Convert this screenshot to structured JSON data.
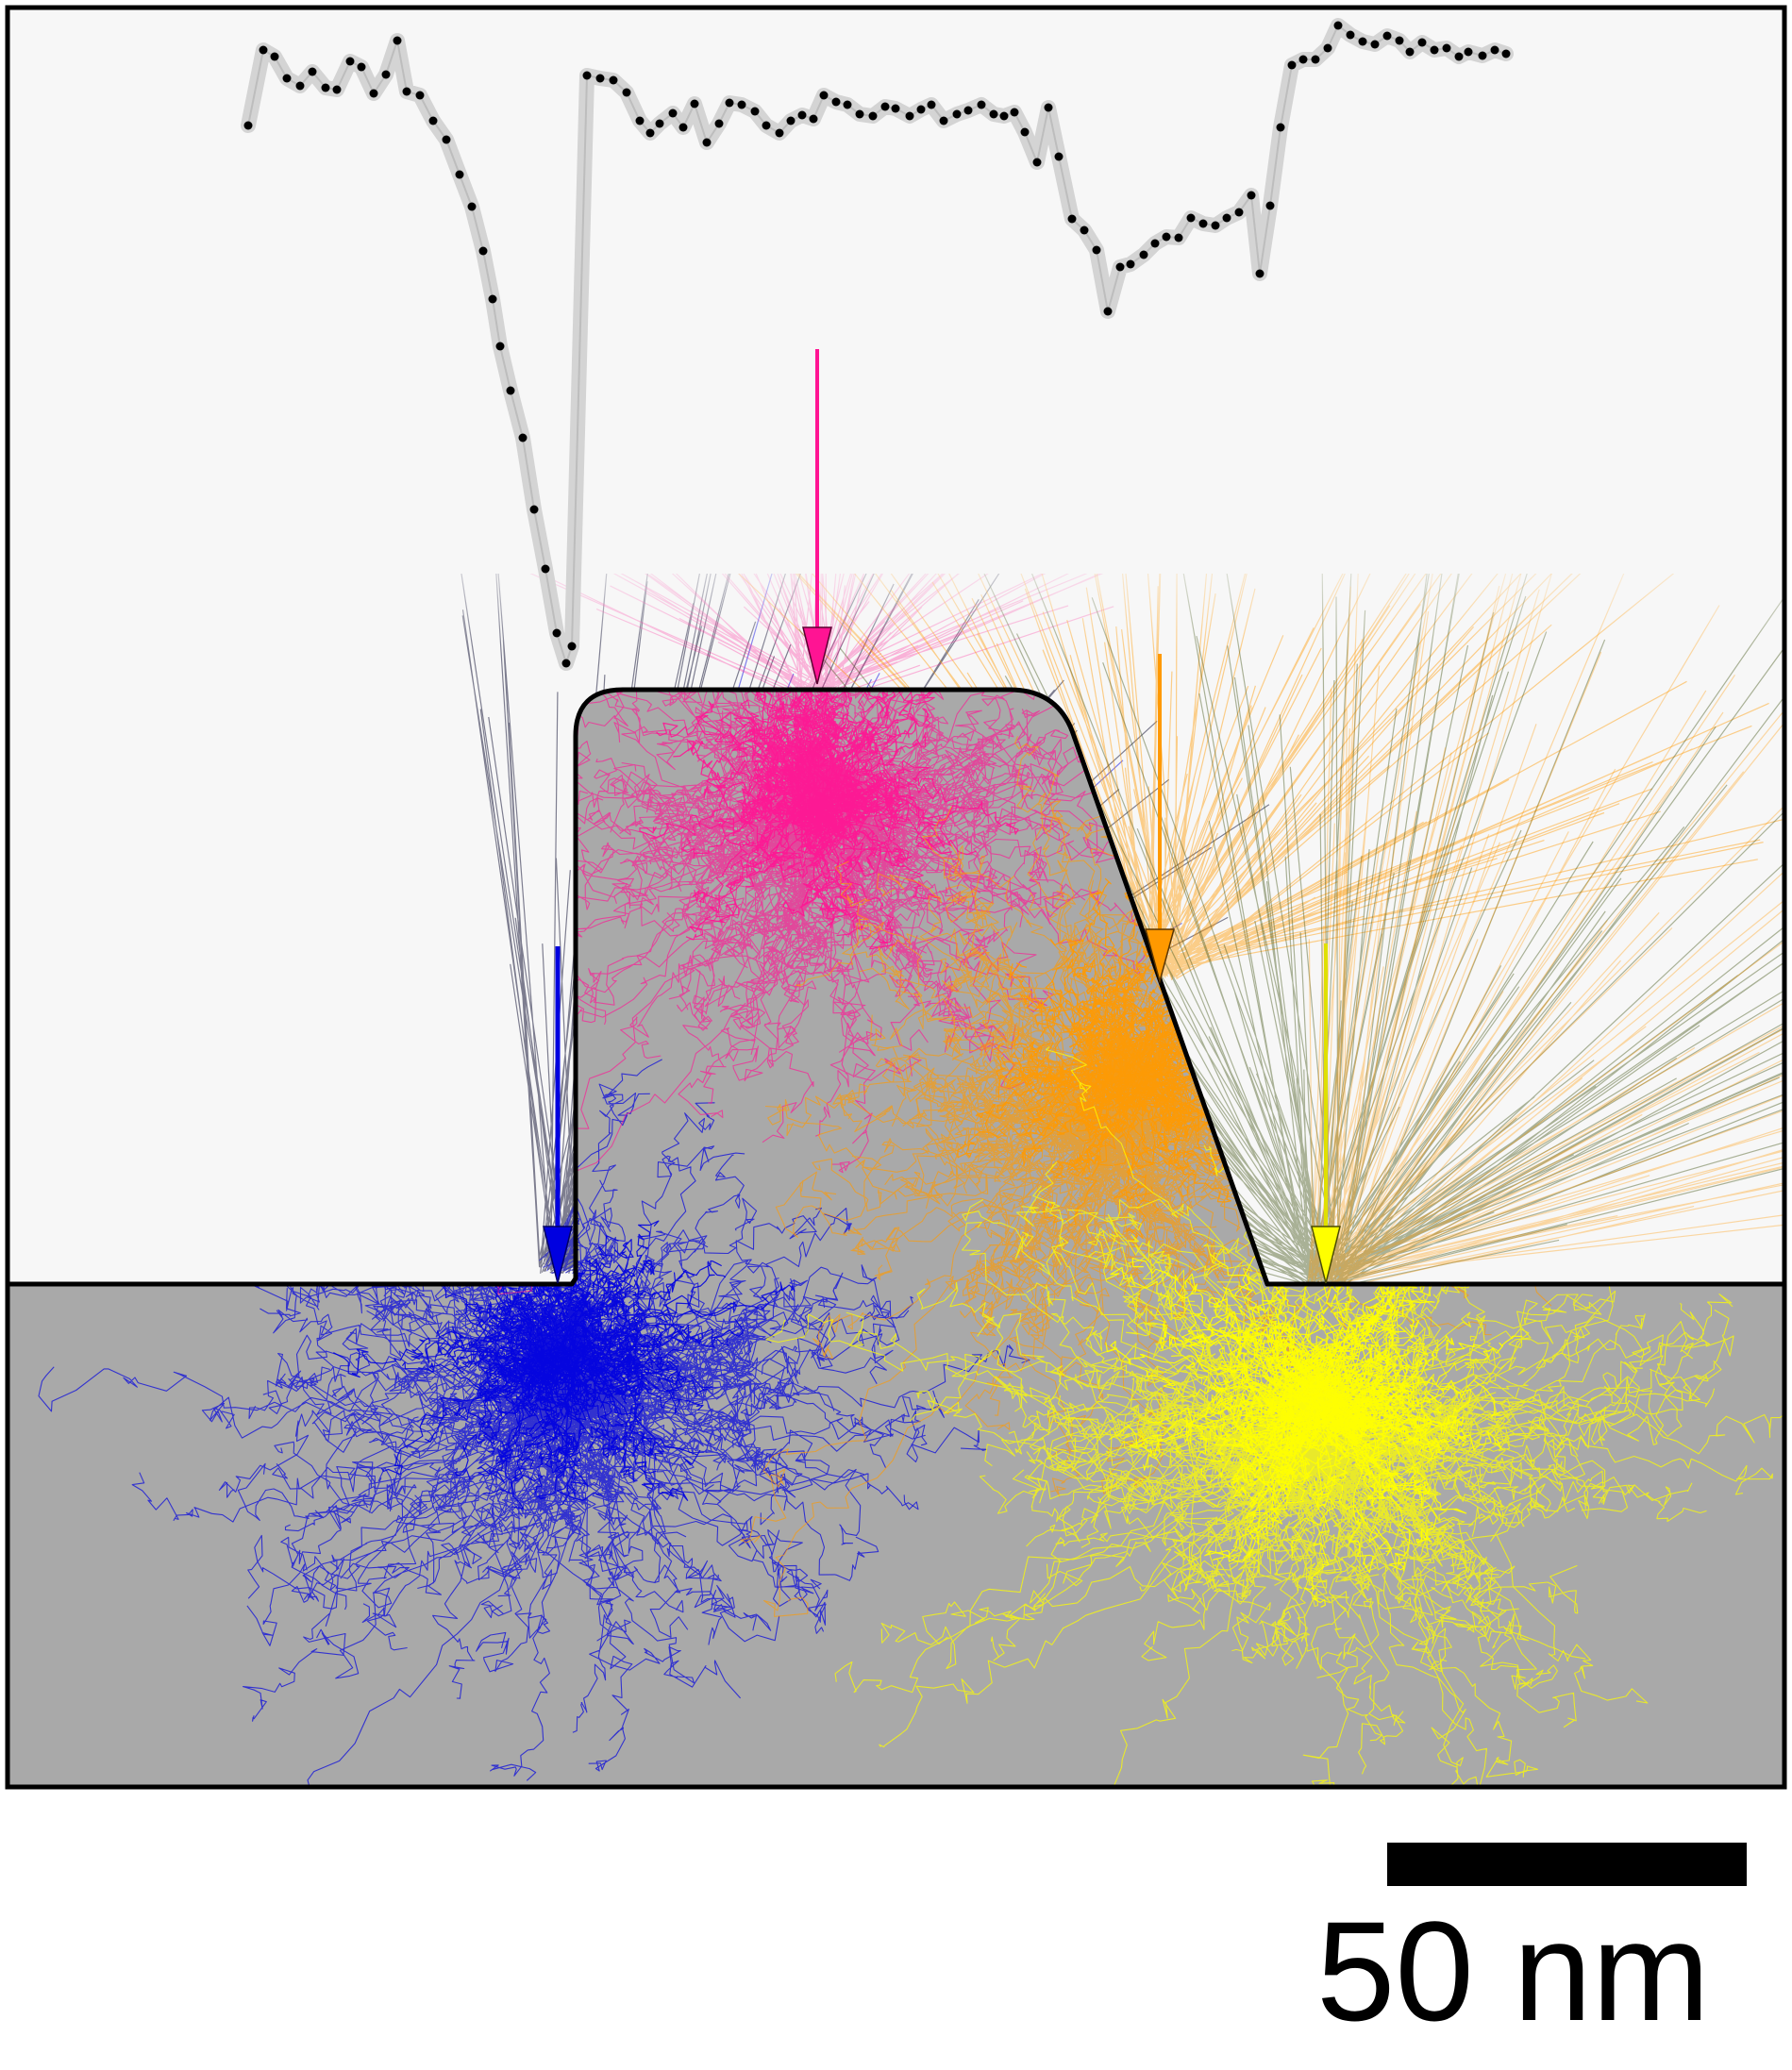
{
  "figure": {
    "scale_bar_label": "50 nm",
    "colors": {
      "vacuum": "#f7f7f7",
      "substrate": "#a9a9a9",
      "outline": "#000000",
      "profile_band": "#d9d9d9",
      "profile_points": "#000000",
      "beam_magenta": "#ff1493",
      "beam_orange": "#ff9900",
      "beam_yellow": "#ffff00",
      "beam_blue": "#0000e0",
      "secondary_dark": "#1a1a3a",
      "secondary_olive": "#4a5a20"
    },
    "beams": [
      {
        "name": "magenta",
        "color": "#ff1493",
        "region": "top-of-ridge"
      },
      {
        "name": "orange",
        "color": "#ff9900",
        "region": "sloped-sidewall"
      },
      {
        "name": "yellow",
        "color": "#ffff00",
        "region": "right-floor"
      },
      {
        "name": "blue",
        "color": "#0000e0",
        "region": "left-trench-corner"
      }
    ],
    "profile_type": "secondary-electron linescan (dots with grey uncertainty band)"
  }
}
